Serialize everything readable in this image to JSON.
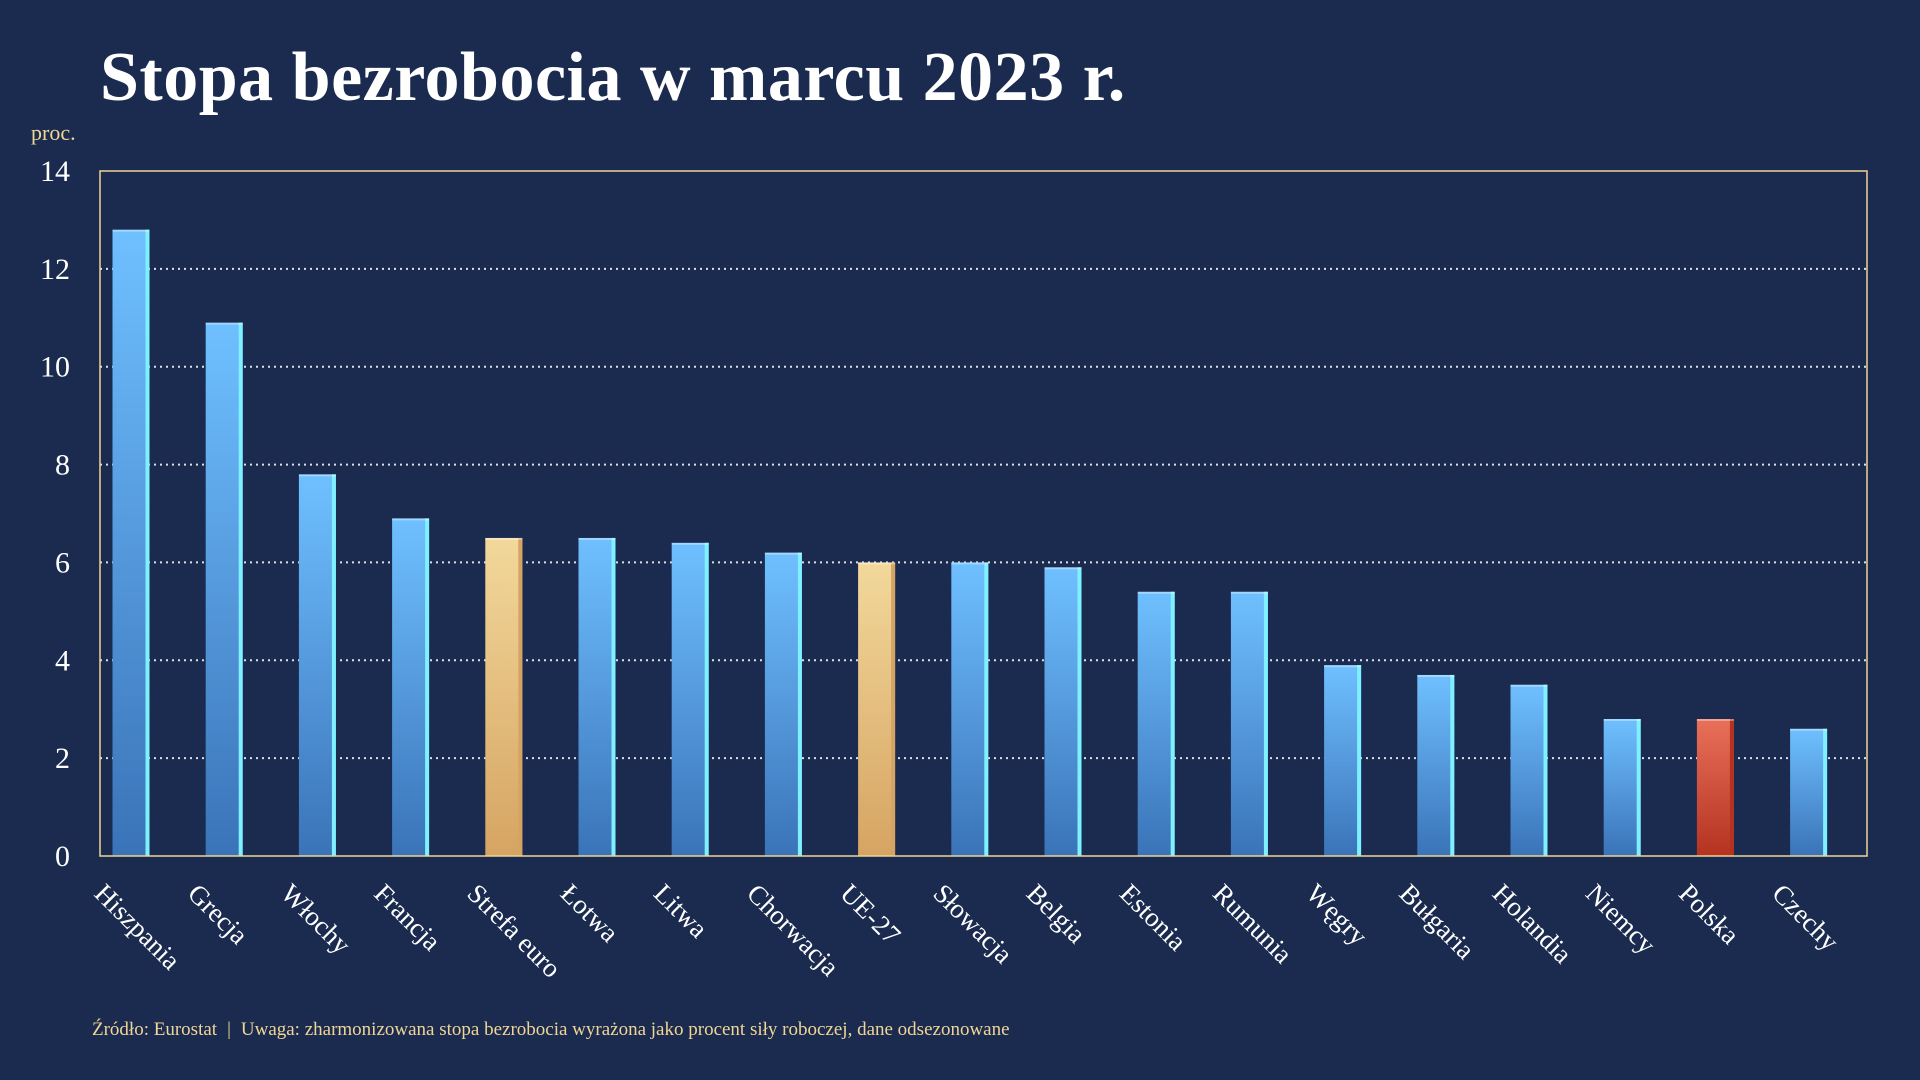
{
  "chart_data": {
    "type": "bar",
    "title": "Stopa bezrobocia w marcu 2023 r.",
    "ylabel": "proc.",
    "xlabel": "",
    "ylim": [
      0,
      14
    ],
    "yticks": [
      0,
      2,
      4,
      6,
      8,
      10,
      12,
      14
    ],
    "grid": true,
    "categories": [
      "Hiszpania",
      "Grecja",
      "Włochy",
      "Francja",
      "Strefa euro",
      "Łotwa",
      "Litwa",
      "Chorwacja",
      "UE-27",
      "Słowacja",
      "Belgia",
      "Estonia",
      "Rumunia",
      "Węgry",
      "Bułgaria",
      "Holandia",
      "Niemcy",
      "Polska",
      "Czechy"
    ],
    "values": [
      12.8,
      10.9,
      7.8,
      6.9,
      6.5,
      6.5,
      6.4,
      6.2,
      6.0,
      6.0,
      5.9,
      5.4,
      5.4,
      3.9,
      3.7,
      3.5,
      2.8,
      2.8,
      2.6
    ],
    "bar_groups": [
      "country",
      "country",
      "country",
      "country",
      "aggregate",
      "country",
      "country",
      "country",
      "aggregate",
      "country",
      "country",
      "country",
      "country",
      "country",
      "country",
      "country",
      "country",
      "highlight",
      "country"
    ],
    "colors": {
      "background": "#1b2b4f",
      "country_top": "#6fc0ff",
      "country_bottom": "#3a73b8",
      "country_edge": "#7ff0ff",
      "aggregate_top": "#f2d89b",
      "aggregate_bottom": "#d6a462",
      "highlight_top": "#e9705a",
      "highlight_bottom": "#b43320",
      "frame": "#f0d596",
      "grid": "#ffffff",
      "accent_text": "#f0d596"
    }
  },
  "footer": {
    "source": "Źródło: Eurostat",
    "separator": "|",
    "note": "Uwaga: zharmonizowana stopa bezrobocia wyrażona jako procent siły roboczej, dane odsezonowane"
  }
}
